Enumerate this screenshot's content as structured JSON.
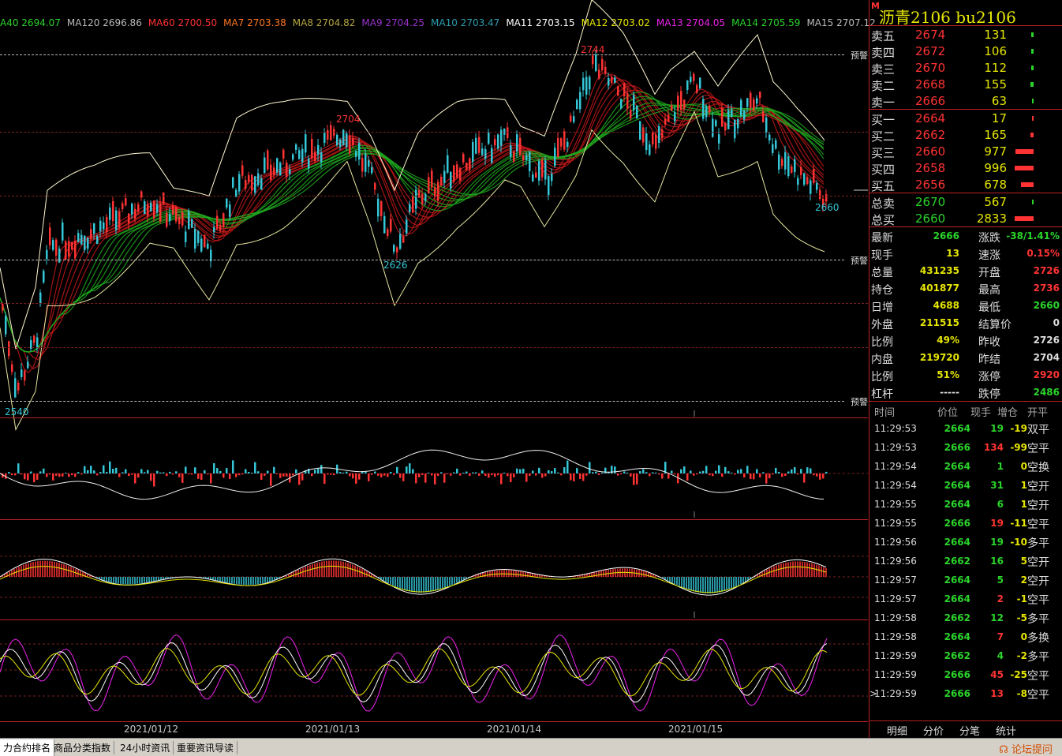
{
  "colors": {
    "up": "#ff3333",
    "down": "#2bd42b",
    "cyan": "#35c7d8",
    "yellow": "#e6e600",
    "frame": "#b22222"
  },
  "ma_bar": [
    {
      "label": "A40",
      "value": "2694.07",
      "color": "#2bd42b"
    },
    {
      "label": "MA120",
      "value": "2696.86",
      "color": "#bbbbbb"
    },
    {
      "label": "MA60",
      "value": "2700.50",
      "color": "#ff3333"
    },
    {
      "label": "MA7",
      "value": "2703.38",
      "color": "#ff7722"
    },
    {
      "label": "MA8",
      "value": "2704.82",
      "color": "#b5a642"
    },
    {
      "label": "MA9",
      "value": "2704.25",
      "color": "#9933cc"
    },
    {
      "label": "MA10",
      "value": "2703.47",
      "color": "#2a9db0"
    },
    {
      "label": "MA11",
      "value": "2703.15",
      "color": "#ffffff"
    },
    {
      "label": "MA12",
      "value": "2703.02",
      "color": "#e6e600"
    },
    {
      "label": "MA13",
      "value": "2704.05",
      "color": "#ee22ee"
    },
    {
      "label": "MA14",
      "value": "2705.59",
      "color": "#2bd42b"
    },
    {
      "label": "MA15",
      "value": "2707.12",
      "color": "#bbbbbb"
    }
  ],
  "chart": {
    "warning_label": "预警",
    "price_labels": {
      "high": "2744",
      "peak1": "2704",
      "low1": "2626",
      "low2": "2540",
      "last": "2660"
    },
    "dates": [
      "2021/01/12",
      "2021/01/13",
      "2021/01/14",
      "2021/01/15"
    ]
  },
  "chart_data": {
    "type": "line",
    "title": "",
    "x": [
      "2021/01/12",
      "2021/01/13",
      "2021/01/14",
      "2021/01/15"
    ],
    "price_marks": [
      {
        "label": "low",
        "value": 2540
      },
      {
        "label": "high",
        "value": 2704
      },
      {
        "label": "low",
        "value": 2626
      },
      {
        "label": "high",
        "value": 2744
      },
      {
        "label": "last",
        "value": 2660
      }
    ]
  },
  "header": {
    "marker": "M",
    "title": "沥青2106  bu2106"
  },
  "asks": [
    {
      "label": "卖五",
      "price": "2674",
      "volume": "131"
    },
    {
      "label": "卖四",
      "price": "2672",
      "volume": "106"
    },
    {
      "label": "卖三",
      "price": "2670",
      "volume": "112"
    },
    {
      "label": "卖二",
      "price": "2668",
      "volume": "155"
    },
    {
      "label": "卖一",
      "price": "2666",
      "volume": "63"
    }
  ],
  "bids": [
    {
      "label": "买一",
      "price": "2664",
      "volume": "17"
    },
    {
      "label": "买二",
      "price": "2662",
      "volume": "165"
    },
    {
      "label": "买三",
      "price": "2660",
      "volume": "977"
    },
    {
      "label": "买四",
      "price": "2658",
      "volume": "996"
    },
    {
      "label": "买五",
      "price": "2656",
      "volume": "678"
    }
  ],
  "totals": [
    {
      "label": "总卖",
      "price": "2670",
      "volume": "567"
    },
    {
      "label": "总买",
      "price": "2660",
      "volume": "2833"
    }
  ],
  "stats_left": [
    {
      "k": "最新",
      "v": "2666",
      "c": "g"
    },
    {
      "k": "现手",
      "v": "13",
      "c": "y"
    },
    {
      "k": "总量",
      "v": "431235",
      "c": "y"
    },
    {
      "k": "持仓",
      "v": "401877",
      "c": "y"
    },
    {
      "k": "日增",
      "v": "4688",
      "c": "y"
    },
    {
      "k": "外盘",
      "v": "211515",
      "c": "y"
    },
    {
      "k": "比例",
      "v": "49%",
      "c": "y"
    },
    {
      "k": "内盘",
      "v": "219720",
      "c": "y"
    },
    {
      "k": "比例",
      "v": "51%",
      "c": "y"
    },
    {
      "k": "杠杆",
      "v": "-----",
      "c": "w"
    }
  ],
  "stats_right": [
    {
      "k": "涨跌",
      "v": "-38/1.41%",
      "c": "g"
    },
    {
      "k": "速涨",
      "v": "0.15%",
      "c": "r"
    },
    {
      "k": "开盘",
      "v": "2726",
      "c": "r"
    },
    {
      "k": "最高",
      "v": "2736",
      "c": "r"
    },
    {
      "k": "最低",
      "v": "2660",
      "c": "g"
    },
    {
      "k": "结算价",
      "v": "0",
      "c": "w"
    },
    {
      "k": "昨收",
      "v": "2726",
      "c": "w"
    },
    {
      "k": "昨结",
      "v": "2704",
      "c": "w"
    },
    {
      "k": "涨停",
      "v": "2920",
      "c": "r"
    },
    {
      "k": "跌停",
      "v": "2486",
      "c": "g"
    }
  ],
  "ticks_header": [
    "时间",
    "价位",
    "现手",
    "增仓",
    "开平"
  ],
  "ticks": [
    {
      "t": "11:29:53",
      "p": "2664",
      "q": "19",
      "d": "-19",
      "k": "双平",
      "qc": "g"
    },
    {
      "t": "11:29:53",
      "p": "2666",
      "q": "134",
      "d": "-99",
      "k": "空平",
      "qc": "r"
    },
    {
      "t": "11:29:54",
      "p": "2664",
      "q": "1",
      "d": "0",
      "k": "空换",
      "qc": "g"
    },
    {
      "t": "11:29:54",
      "p": "2664",
      "q": "31",
      "d": "1",
      "k": "空开",
      "qc": "g"
    },
    {
      "t": "11:29:55",
      "p": "2664",
      "q": "6",
      "d": "1",
      "k": "空开",
      "qc": "g"
    },
    {
      "t": "11:29:55",
      "p": "2666",
      "q": "19",
      "d": "-11",
      "k": "空平",
      "qc": "r"
    },
    {
      "t": "11:29:56",
      "p": "2664",
      "q": "19",
      "d": "-10",
      "k": "多平",
      "qc": "g"
    },
    {
      "t": "11:29:56",
      "p": "2662",
      "q": "16",
      "d": "5",
      "k": "空开",
      "qc": "g"
    },
    {
      "t": "11:29:57",
      "p": "2664",
      "q": "5",
      "d": "2",
      "k": "空开",
      "qc": "g"
    },
    {
      "t": "11:29:57",
      "p": "2664",
      "q": "2",
      "d": "-1",
      "k": "空平",
      "qc": "r"
    },
    {
      "t": "11:29:58",
      "p": "2662",
      "q": "12",
      "d": "-5",
      "k": "多平",
      "qc": "g"
    },
    {
      "t": "11:29:58",
      "p": "2664",
      "q": "7",
      "d": "0",
      "k": "多换",
      "qc": "r"
    },
    {
      "t": "11:29:59",
      "p": "2662",
      "q": "4",
      "d": "-2",
      "k": "多平",
      "qc": "g"
    },
    {
      "t": "11:29:59",
      "p": "2666",
      "q": "45",
      "d": "-25",
      "k": "空平",
      "qc": "r"
    },
    {
      "t": "11:29:59",
      "p": "2666",
      "q": "13",
      "d": "-8",
      "k": "空平",
      "qc": "r",
      "cursor": ">"
    }
  ],
  "right_tabs": [
    "明细",
    "分价",
    "分笔",
    "统计"
  ],
  "status_tabs": [
    "力合约排名",
    "商品分类指数",
    "24小时资讯",
    "重要资讯导读"
  ],
  "forum_link": "论坛提问"
}
